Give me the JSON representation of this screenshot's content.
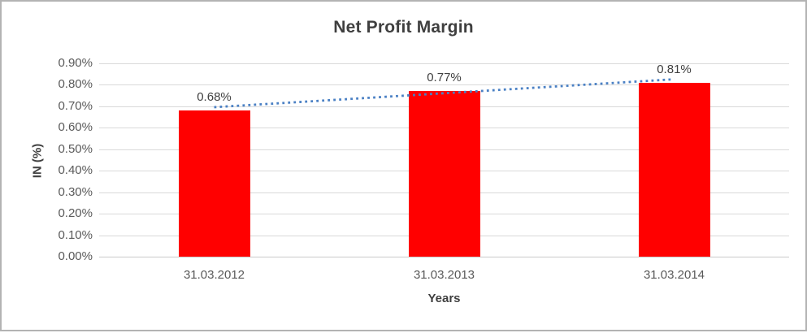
{
  "chart_data": {
    "type": "bar",
    "title": "Net Profit Margin",
    "xlabel": "Years",
    "ylabel": "IN (%)",
    "categories": [
      "31.03.2012",
      "31.03.2013",
      "31.03.2014"
    ],
    "values": [
      0.68,
      0.77,
      0.81
    ],
    "value_labels": [
      "0.68%",
      "0.77%",
      "0.81%"
    ],
    "y_ticks": [
      "0.90%",
      "0.80%",
      "0.70%",
      "0.60%",
      "0.50%",
      "0.40%",
      "0.30%",
      "0.20%",
      "0.10%",
      "0.00%"
    ],
    "ylim": [
      0,
      0.9
    ],
    "grid": "horizontal",
    "legend_position": "none",
    "has_trendline": true,
    "trendline_style": "dotted",
    "colors": {
      "bar": "#ff0000",
      "trendline": "#4a80c4",
      "gridline": "#d9d9d9",
      "title_text": "#3f3f3f",
      "tick_text": "#595959"
    }
  }
}
